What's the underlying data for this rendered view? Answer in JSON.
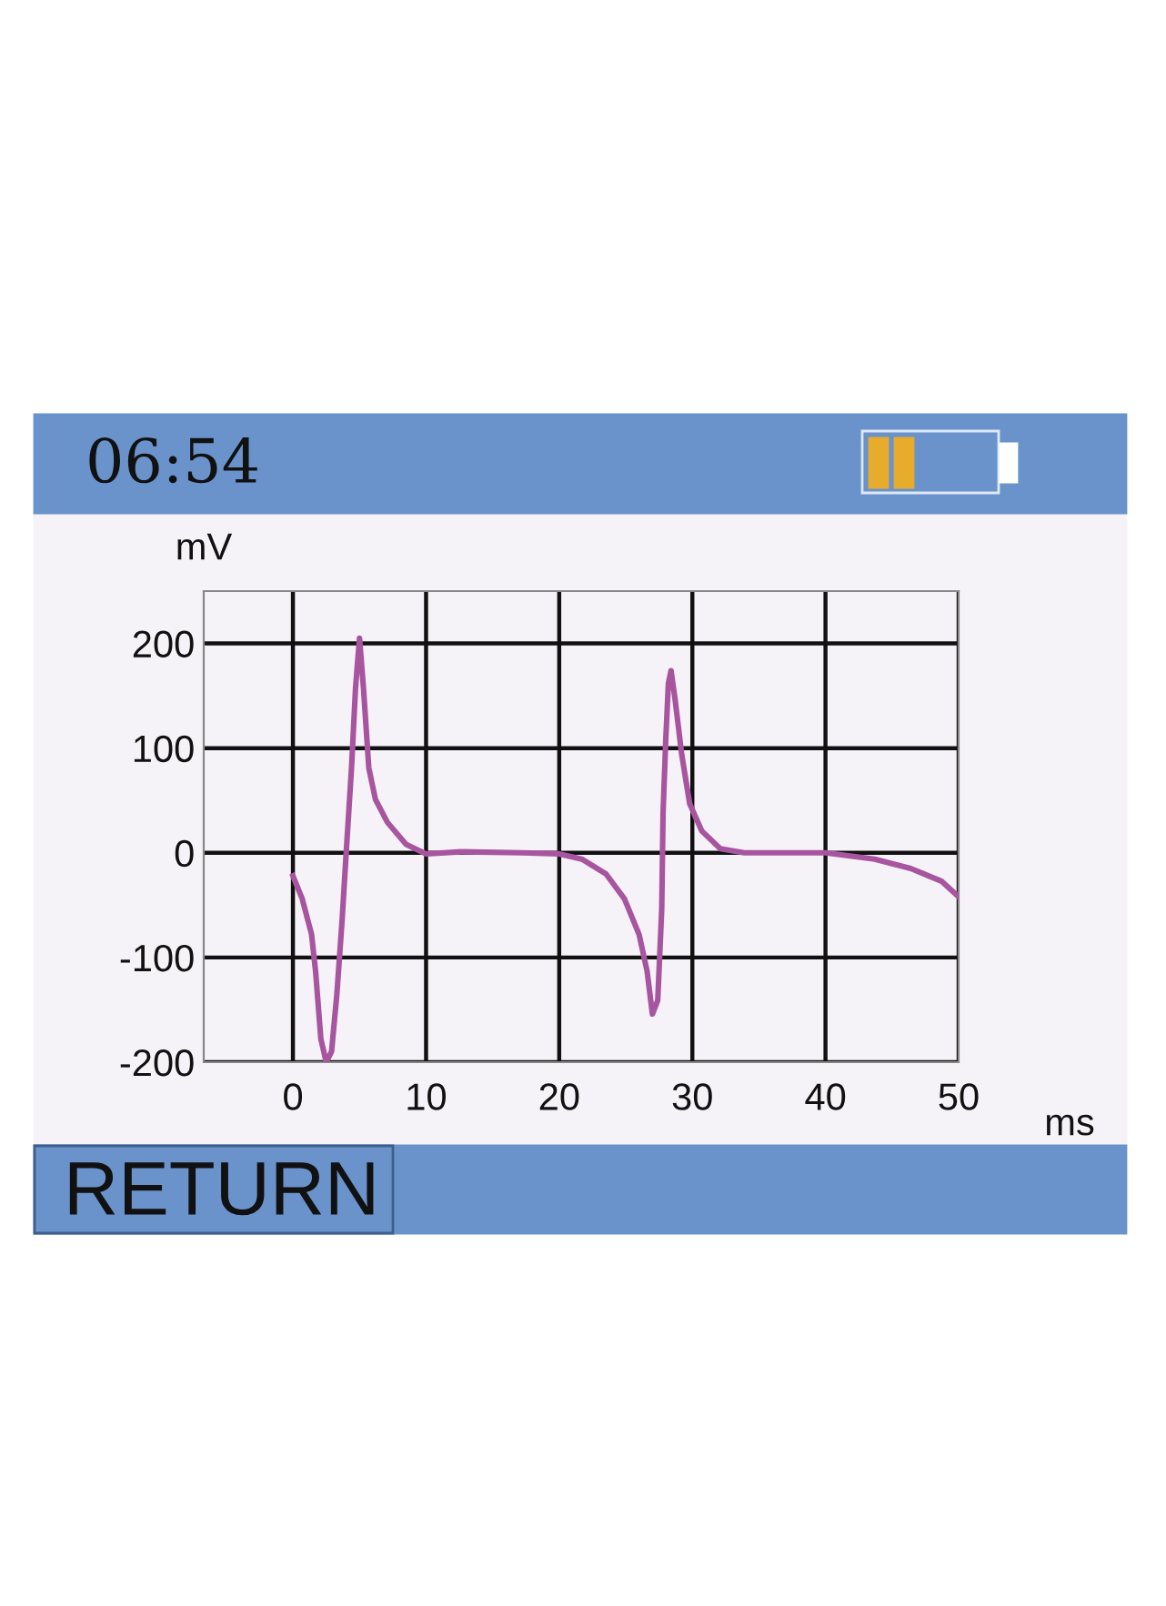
{
  "chart_data": {
    "type": "line",
    "xlabel": "ms",
    "ylabel": "mV",
    "annotations": [
      "06:54",
      "RETURN"
    ],
    "series": [
      {
        "color": "#a855a0",
        "x": [
          0,
          0.7,
          1.4,
          1.7,
          2.1,
          2.5,
          2.9,
          3.3,
          3.7,
          4.0,
          4.4,
          4.7,
          5.0,
          5.3,
          5.7,
          6.2,
          7.1,
          8.5,
          10,
          12.6,
          17.2,
          20,
          21.7,
          23.5,
          24.9,
          26,
          26.6,
          27.0,
          27.4,
          27.7,
          27.8,
          28.0,
          28.2,
          28.4,
          28.7,
          29.2,
          29.8,
          30.7,
          32.1,
          33.9,
          40,
          43.7,
          46.4,
          48.7,
          50
        ],
        "values": [
          -22,
          -44,
          -78,
          -113,
          -178,
          -200,
          -190,
          -135,
          -63,
          0,
          81,
          157,
          205,
          157,
          81,
          51,
          29,
          8,
          -1,
          1,
          0,
          -1,
          -6,
          -20,
          -44,
          -78,
          -113,
          -154,
          -141,
          -54,
          38,
          107,
          162,
          174,
          147,
          94,
          47,
          21,
          4,
          0,
          0,
          -6,
          -15,
          -27,
          -42
        ]
      }
    ],
    "xlim": [
      -6.7,
      50
    ],
    "xticks": [
      0,
      10,
      20,
      30,
      40,
      50
    ],
    "ylim": [
      -200,
      250
    ],
    "yticks": [
      -200,
      -100,
      0,
      100,
      200
    ],
    "grid": true,
    "line_style": "solid",
    "marker": "none"
  }
}
